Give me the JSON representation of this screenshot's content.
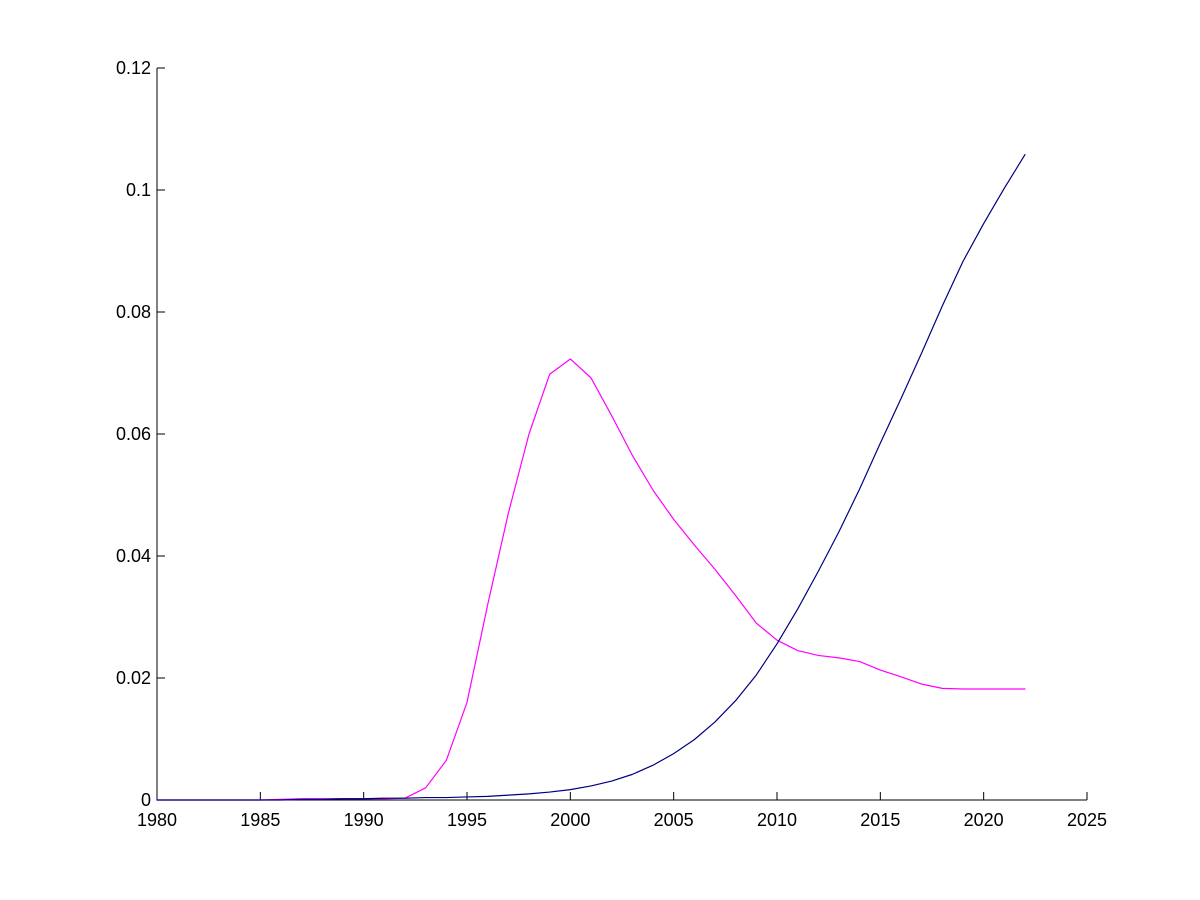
{
  "chart_data": {
    "type": "line",
    "title": "",
    "xlabel": "",
    "ylabel": "",
    "xlim": [
      1980,
      2025
    ],
    "ylim": [
      0,
      0.12
    ],
    "grid": false,
    "legend": "none",
    "x_ticks": [
      "1980",
      "1985",
      "1990",
      "1995",
      "2000",
      "2005",
      "2010",
      "2015",
      "2020",
      "2025"
    ],
    "y_ticks": [
      "0",
      "0.02",
      "0.04",
      "0.06",
      "0.08",
      "0.1",
      "0.12"
    ],
    "x_tick_values": [
      1980,
      1985,
      1990,
      1995,
      2000,
      2005,
      2010,
      2015,
      2020,
      2025
    ],
    "y_tick_values": [
      0,
      0.02,
      0.04,
      0.06,
      0.08,
      0.1,
      0.12
    ],
    "x": [
      1980,
      1981,
      1982,
      1983,
      1984,
      1985,
      1986,
      1987,
      1988,
      1989,
      1990,
      1991,
      1992,
      1993,
      1994,
      1995,
      1996,
      1997,
      1998,
      1999,
      2000,
      2001,
      2002,
      2003,
      2004,
      2005,
      2006,
      2007,
      2008,
      2009,
      2010,
      2011,
      2012,
      2013,
      2014,
      2015,
      2016,
      2017,
      2018,
      2019,
      2020,
      2021,
      2022
    ],
    "series": [
      {
        "color": "#ff00ff",
        "values": [
          0,
          0,
          0,
          0,
          0,
          0,
          0.0001,
          0.0002,
          0.0002,
          0.0002,
          0.0002,
          0.0002,
          0.0003,
          0.002,
          0.0065,
          0.016,
          0.032,
          0.047,
          0.06,
          0.0698,
          0.0723,
          0.0692,
          0.063,
          0.0565,
          0.0508,
          0.046,
          0.0418,
          0.0378,
          0.0335,
          0.029,
          0.0262,
          0.0245,
          0.0237,
          0.0233,
          0.0227,
          0.0213,
          0.0202,
          0.019,
          0.0183,
          0.0182,
          0.0182,
          0.0182,
          0.0182
        ]
      },
      {
        "color": "#00007f",
        "values": [
          0,
          0,
          0,
          0,
          0,
          0,
          0,
          0.0001,
          0.0001,
          0.0002,
          0.0002,
          0.0003,
          0.0003,
          0.0004,
          0.0004,
          0.0005,
          0.0006,
          0.0008,
          0.001,
          0.0013,
          0.0017,
          0.0023,
          0.0031,
          0.0042,
          0.0057,
          0.0076,
          0.0099,
          0.0128,
          0.0163,
          0.0205,
          0.0256,
          0.0313,
          0.0375,
          0.044,
          0.051,
          0.0585,
          0.0658,
          0.0733,
          0.081,
          0.0883,
          0.0945,
          0.1003,
          0.1058
        ]
      }
    ]
  }
}
